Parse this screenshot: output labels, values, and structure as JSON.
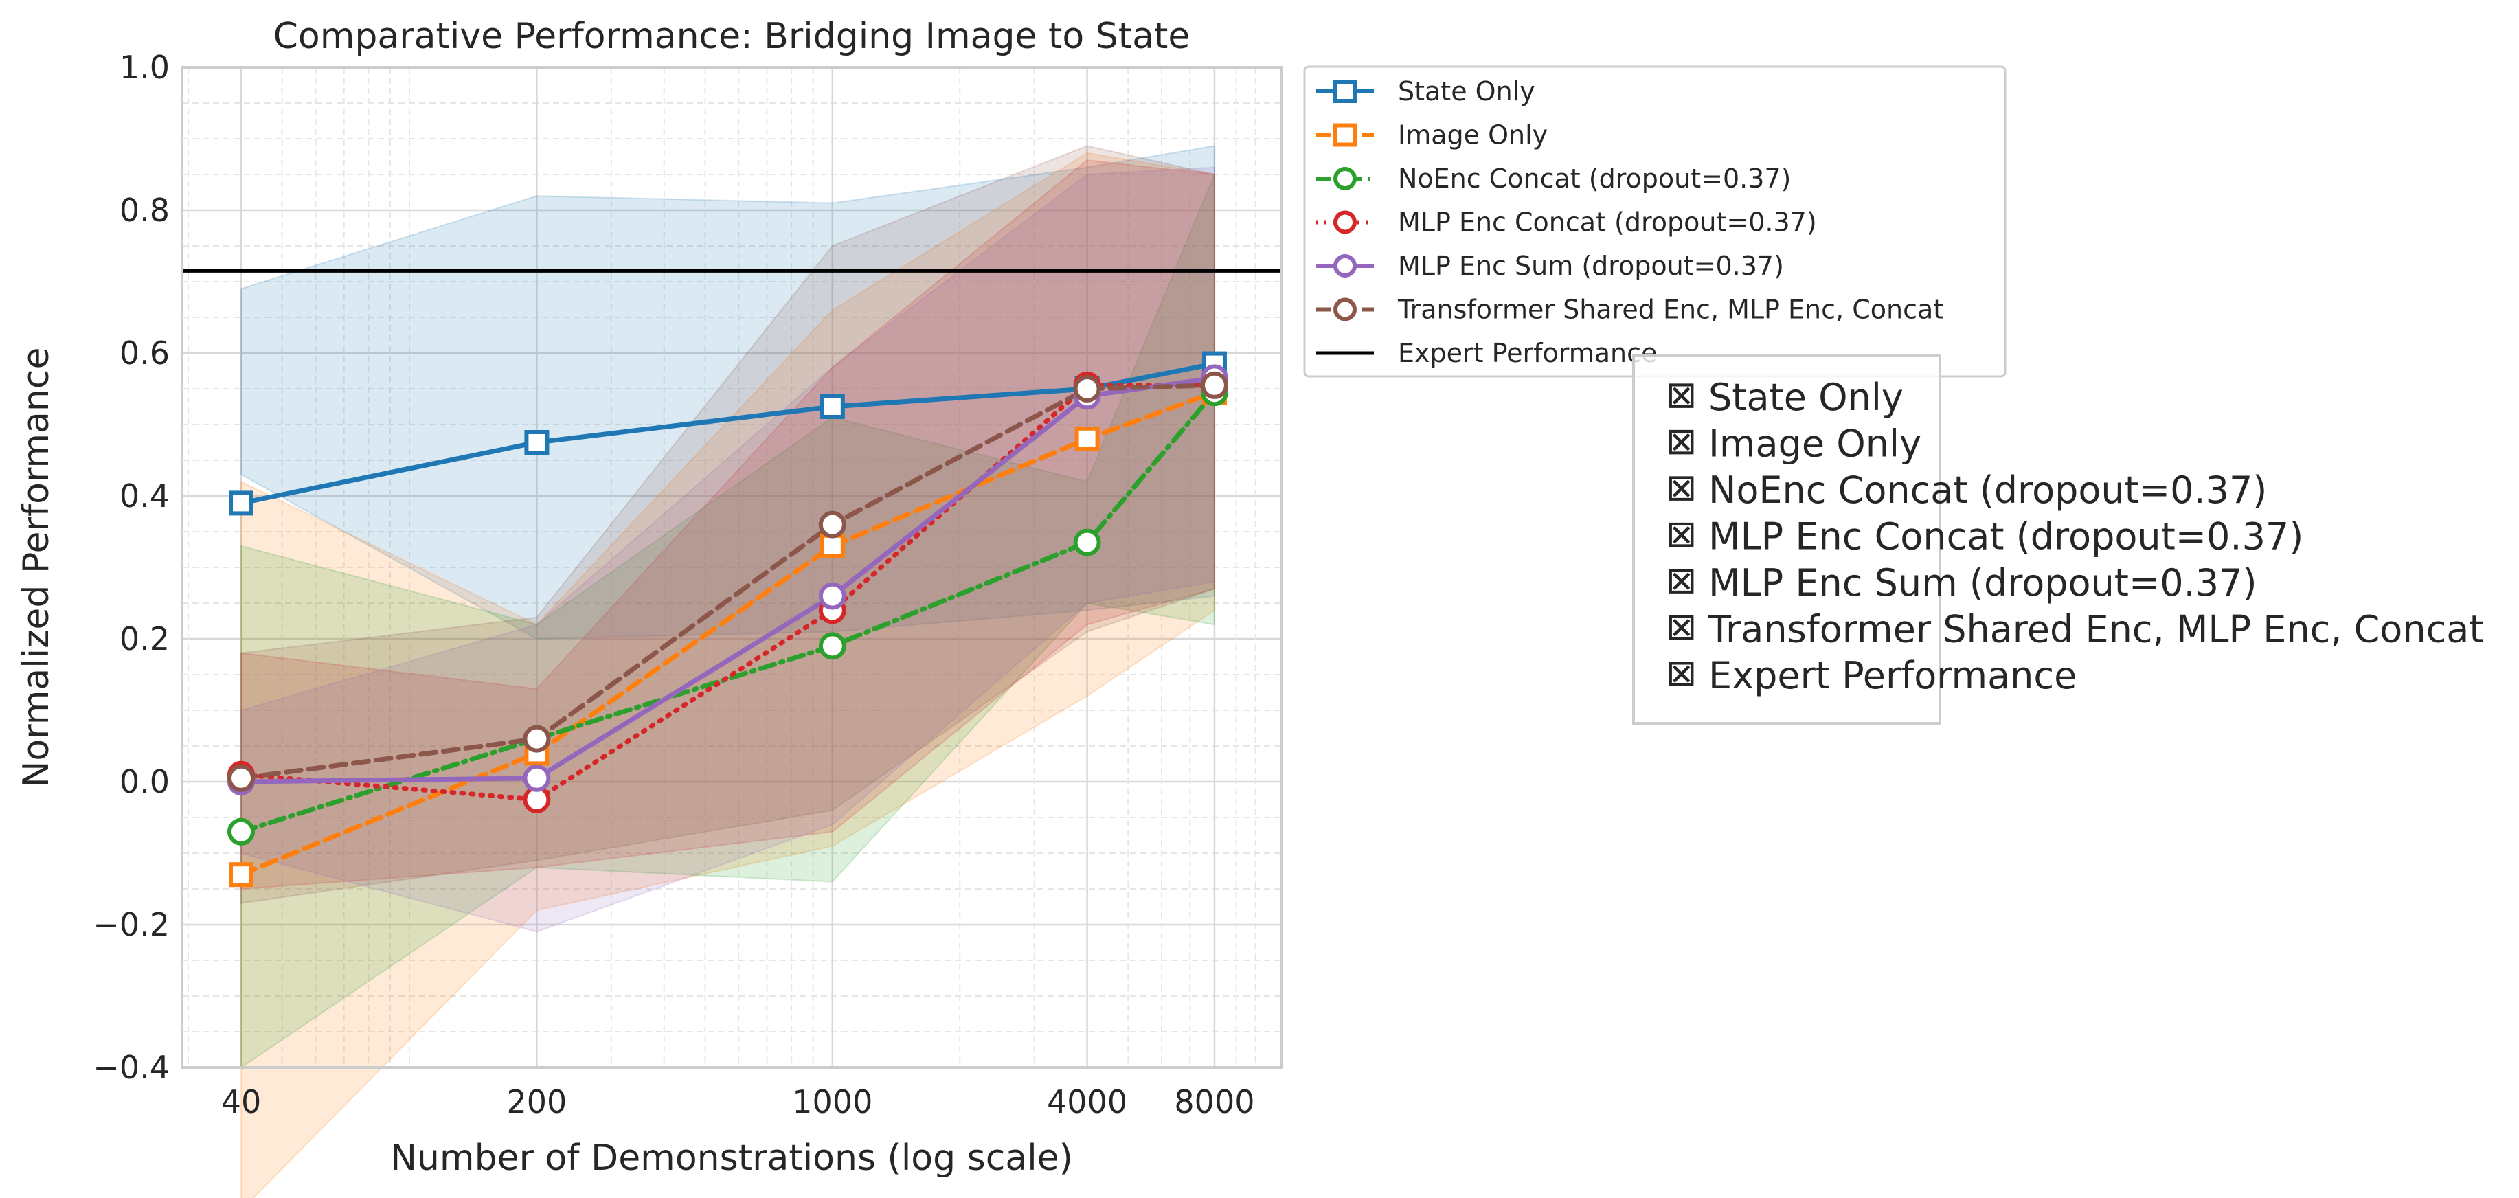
{
  "chart_data": {
    "type": "line",
    "title": "Comparative Performance: Bridging Image to State",
    "xlabel": "Number of Demonstrations (log scale)",
    "ylabel": "Normalized Performance",
    "x_scale": "log",
    "x_ticks": [
      40,
      200,
      1000,
      4000,
      8000
    ],
    "x_tick_labels": [
      "40",
      "200",
      "1000",
      "4000",
      "8000"
    ],
    "xlim": [
      29,
      11500
    ],
    "ylim": [
      -0.4,
      1.0
    ],
    "y_ticks": [
      -0.4,
      -0.2,
      0.0,
      0.2,
      0.4,
      0.6,
      0.8,
      1.0
    ],
    "y_tick_labels": [
      "−0.4",
      "−0.2",
      "0.0",
      "0.2",
      "0.4",
      "0.6",
      "0.8",
      "1.0"
    ],
    "grid": true,
    "legend_position": "outside top-right",
    "x": [
      40,
      200,
      1000,
      4000,
      8000
    ],
    "series": [
      {
        "name": "State Only",
        "color": "#1f77b4",
        "marker": "square",
        "dash": "solid",
        "values": [
          0.39,
          0.475,
          0.525,
          0.55,
          0.585
        ],
        "lower": [
          0.43,
          0.2,
          0.21,
          0.24,
          0.26
        ],
        "upper": [
          0.69,
          0.82,
          0.81,
          0.86,
          0.89
        ]
      },
      {
        "name": "Image Only",
        "color": "#ff7f0e",
        "marker": "square",
        "dash": "dashed",
        "values": [
          -0.13,
          0.04,
          0.33,
          0.48,
          0.545
        ],
        "lower": [
          -0.6,
          -0.18,
          -0.09,
          0.12,
          0.24
        ],
        "upper": [
          0.42,
          0.22,
          0.66,
          0.88,
          0.85
        ]
      },
      {
        "name": "NoEnc Concat (dropout=0.37)",
        "color": "#2ca02c",
        "marker": "circle",
        "dash": "dashdot",
        "values": [
          -0.07,
          0.06,
          0.19,
          0.335,
          0.545
        ],
        "lower": [
          -0.4,
          -0.12,
          -0.14,
          0.25,
          0.22
        ],
        "upper": [
          0.33,
          0.22,
          0.51,
          0.42,
          0.85
        ]
      },
      {
        "name": "MLP Enc Concat (dropout=0.37)",
        "color": "#d62728",
        "marker": "circle",
        "dash": "dotted",
        "values": [
          0.01,
          -0.025,
          0.24,
          0.555,
          0.555
        ],
        "lower": [
          -0.15,
          -0.12,
          -0.07,
          0.22,
          0.27
        ],
        "upper": [
          0.18,
          0.13,
          0.58,
          0.87,
          0.85
        ]
      },
      {
        "name": "MLP Enc Sum (dropout=0.37)",
        "color": "#9467bd",
        "marker": "circle",
        "dash": "solid",
        "values": [
          0.0,
          0.005,
          0.26,
          0.54,
          0.565
        ],
        "lower": [
          -0.1,
          -0.21,
          -0.06,
          0.25,
          0.28
        ],
        "upper": [
          0.1,
          0.22,
          0.58,
          0.85,
          0.86
        ]
      },
      {
        "name": "Transformer Shared Enc, MLP Enc, Concat",
        "color": "#8c564b",
        "marker": "circle",
        "dash": "dashed",
        "values": [
          0.005,
          0.06,
          0.36,
          0.55,
          0.555
        ],
        "lower": [
          -0.17,
          -0.11,
          -0.04,
          0.21,
          0.27
        ],
        "upper": [
          0.18,
          0.23,
          0.75,
          0.89,
          0.85
        ]
      }
    ],
    "reference_line": {
      "name": "Expert Performance",
      "y": 0.715,
      "color": "#000000"
    },
    "secondary_legend": {
      "symbol": "⊠",
      "items": [
        "State Only",
        "Image Only",
        "NoEnc Concat (dropout=0.37)",
        "MLP Enc Concat (dropout=0.37)",
        "MLP Enc Sum (dropout=0.37)",
        "Transformer Shared Enc, MLP Enc, Concat",
        "Expert Performance"
      ]
    }
  }
}
